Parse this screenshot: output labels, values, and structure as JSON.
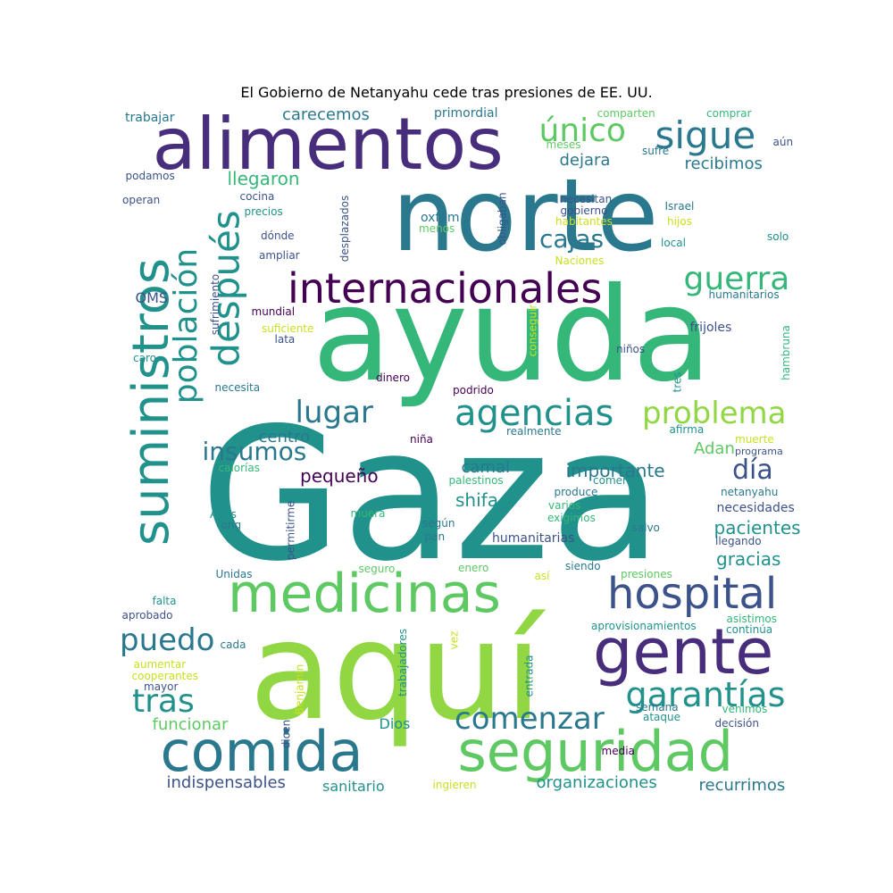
{
  "title": "El Gobierno de Netanyahu cede tras presiones de EE. UU.",
  "colors": {
    "teal": "#21918c",
    "dark_teal": "#2a788e",
    "green": "#35b779",
    "light_green": "#5ec962",
    "lime": "#90d743",
    "purple": "#3b528b",
    "deep_purple": "#440154",
    "violet": "#472d7b",
    "yellow_green": "#c8e020"
  },
  "words": [
    {
      "text": "Gaza",
      "color": "teal"
    },
    {
      "text": "aquí",
      "color": "lime"
    },
    {
      "text": "ayuda",
      "color": "green"
    },
    {
      "text": "norte",
      "color": "dark_teal"
    },
    {
      "text": "alimentos",
      "color": "violet"
    },
    {
      "text": "suministros",
      "color": "teal"
    },
    {
      "text": "medicinas",
      "color": "light_green"
    },
    {
      "text": "seguridad",
      "color": "light_green"
    },
    {
      "text": "comida",
      "color": "dark_teal"
    },
    {
      "text": "gente",
      "color": "violet"
    },
    {
      "text": "internacionales",
      "color": "deep_purple"
    },
    {
      "text": "hospital",
      "color": "purple"
    },
    {
      "text": "después",
      "color": "teal"
    },
    {
      "text": "sigue",
      "color": "dark_teal"
    },
    {
      "text": "agencias",
      "color": "teal"
    },
    {
      "text": "garantías",
      "color": "teal"
    },
    {
      "text": "población",
      "color": "teal"
    },
    {
      "text": "problema",
      "color": "lime"
    },
    {
      "text": "único",
      "color": "light_green"
    },
    {
      "text": "guerra",
      "color": "green"
    },
    {
      "text": "lugar",
      "color": "dark_teal"
    },
    {
      "text": "comenzar",
      "color": "dark_teal"
    },
    {
      "text": "tras",
      "color": "teal"
    },
    {
      "text": "puedo",
      "color": "dark_teal"
    },
    {
      "text": "cajas",
      "color": "dark_teal"
    },
    {
      "text": "día",
      "color": "purple"
    },
    {
      "text": "insumos",
      "color": "dark_teal"
    },
    {
      "text": "pacientes",
      "color": "teal"
    },
    {
      "text": "importante",
      "color": "dark_teal"
    },
    {
      "text": "gracias",
      "color": "teal"
    },
    {
      "text": "carecemos",
      "color": "dark_teal"
    },
    {
      "text": "dejara",
      "color": "dark_teal"
    },
    {
      "text": "recibimos",
      "color": "dark_teal"
    },
    {
      "text": "llegaron",
      "color": "green"
    },
    {
      "text": "centro",
      "color": "dark_teal"
    },
    {
      "text": "pequeño",
      "color": "deep_purple"
    },
    {
      "text": "camal",
      "color": "dark_teal"
    },
    {
      "text": "shifa",
      "color": "teal"
    },
    {
      "text": "Adan",
      "color": "light_green"
    },
    {
      "text": "funcionar",
      "color": "light_green"
    },
    {
      "text": "indispensables",
      "color": "purple"
    },
    {
      "text": "sanitario",
      "color": "teal"
    },
    {
      "text": "organizaciones",
      "color": "teal"
    },
    {
      "text": "recurrimos",
      "color": "dark_teal"
    },
    {
      "text": "Dios",
      "color": "teal"
    },
    {
      "text": "OMS",
      "color": "purple"
    },
    {
      "text": "necesidades",
      "color": "purple"
    },
    {
      "text": "humanitarias",
      "color": "purple"
    },
    {
      "text": "frijoles",
      "color": "purple"
    },
    {
      "text": "trabajar",
      "color": "dark_teal"
    },
    {
      "text": "primordial",
      "color": "dark_teal"
    },
    {
      "text": "comparten",
      "color": "light_green"
    },
    {
      "text": "comprar",
      "color": "green"
    },
    {
      "text": "meses",
      "color": "light_green"
    },
    {
      "text": "aún",
      "color": "purple"
    },
    {
      "text": "sufre",
      "color": "dark_teal"
    },
    {
      "text": "podamos",
      "color": "purple"
    },
    {
      "text": "operan",
      "color": "purple"
    },
    {
      "text": "cocina",
      "color": "purple"
    },
    {
      "text": "precios",
      "color": "teal"
    },
    {
      "text": "desplazados",
      "color": "purple"
    },
    {
      "text": "necesitan",
      "color": "purple"
    },
    {
      "text": "gobierno",
      "color": "purple"
    },
    {
      "text": "oxfam",
      "color": "dark_teal"
    },
    {
      "text": "menos",
      "color": "light_green"
    },
    {
      "text": "habitantes",
      "color": "yellow_green"
    },
    {
      "text": "Israel",
      "color": "dark_teal"
    },
    {
      "text": "hijos",
      "color": "yellow_green"
    },
    {
      "text": "obligaban",
      "color": "purple"
    },
    {
      "text": "dónde",
      "color": "purple"
    },
    {
      "text": "ampliar",
      "color": "purple"
    },
    {
      "text": "local",
      "color": "teal"
    },
    {
      "text": "solo",
      "color": "teal"
    },
    {
      "text": "Naciones",
      "color": "yellow_green"
    },
    {
      "text": "sufrimiento",
      "color": "purple"
    },
    {
      "text": "humanitarios",
      "color": "dark_teal"
    },
    {
      "text": "mundial",
      "color": "deep_purple"
    },
    {
      "text": "suficiente",
      "color": "yellow_green"
    },
    {
      "text": "lata",
      "color": "purple"
    },
    {
      "text": "caro",
      "color": "teal"
    },
    {
      "text": "conseguir",
      "color": "yellow_green"
    },
    {
      "text": "niños",
      "color": "purple"
    },
    {
      "text": "hambruna",
      "color": "green"
    },
    {
      "text": "necesita",
      "color": "dark_teal"
    },
    {
      "text": "dinero",
      "color": "deep_purple"
    },
    {
      "text": "podrido",
      "color": "deep_purple"
    },
    {
      "text": "tres",
      "color": "teal"
    },
    {
      "text": "niña",
      "color": "deep_purple"
    },
    {
      "text": "realmente",
      "color": "dark_teal"
    },
    {
      "text": "afirma",
      "color": "teal"
    },
    {
      "text": "muerte",
      "color": "yellow_green"
    },
    {
      "text": "calorías",
      "color": "green"
    },
    {
      "text": "palestinos",
      "color": "green"
    },
    {
      "text": "comer",
      "color": "teal"
    },
    {
      "text": "produce",
      "color": "dark_teal"
    },
    {
      "text": "netanyahu",
      "color": "dark_teal"
    },
    {
      "text": "varios",
      "color": "green"
    },
    {
      "text": "exigimos",
      "color": "green"
    },
    {
      "text": "Altos",
      "color": "teal"
    },
    {
      "text": "permitirme",
      "color": "purple"
    },
    {
      "text": "muera",
      "color": "green"
    },
    {
      "text": "según",
      "color": "dark_teal"
    },
    {
      "text": "ong",
      "color": "dark_teal"
    },
    {
      "text": "pan",
      "color": "dark_teal"
    },
    {
      "text": "salvo",
      "color": "dark_teal"
    },
    {
      "text": "llegando",
      "color": "purple"
    },
    {
      "text": "Unidas",
      "color": "dark_teal"
    },
    {
      "text": "seguro",
      "color": "light_green"
    },
    {
      "text": "enero",
      "color": "light_green"
    },
    {
      "text": "siendo",
      "color": "dark_teal"
    },
    {
      "text": "así",
      "color": "yellow_green"
    },
    {
      "text": "presiones",
      "color": "light_green"
    },
    {
      "text": "falta",
      "color": "teal"
    },
    {
      "text": "aprobado",
      "color": "purple"
    },
    {
      "text": "trabajadores",
      "color": "teal"
    },
    {
      "text": "vez",
      "color": "yellow_green"
    },
    {
      "text": "aprovisionamientos",
      "color": "teal"
    },
    {
      "text": "asistimos",
      "color": "green"
    },
    {
      "text": "continúa",
      "color": "teal"
    },
    {
      "text": "cada",
      "color": "dark_teal"
    },
    {
      "text": "aumentar",
      "color": "yellow_green"
    },
    {
      "text": "cooperantes",
      "color": "yellow_green"
    },
    {
      "text": "mayor",
      "color": "purple"
    },
    {
      "text": "Benjamín",
      "color": "yellow_green"
    },
    {
      "text": "entrada",
      "color": "teal"
    },
    {
      "text": "semana",
      "color": "dark_teal"
    },
    {
      "text": "ataque",
      "color": "teal"
    },
    {
      "text": "venimos",
      "color": "green"
    },
    {
      "text": "decisión",
      "color": "purple"
    },
    {
      "text": "dicen",
      "color": "purple"
    },
    {
      "text": "media",
      "color": "deep_purple"
    },
    {
      "text": "ingieren",
      "color": "yellow_green"
    },
    {
      "text": "programa",
      "color": "purple"
    }
  ]
}
